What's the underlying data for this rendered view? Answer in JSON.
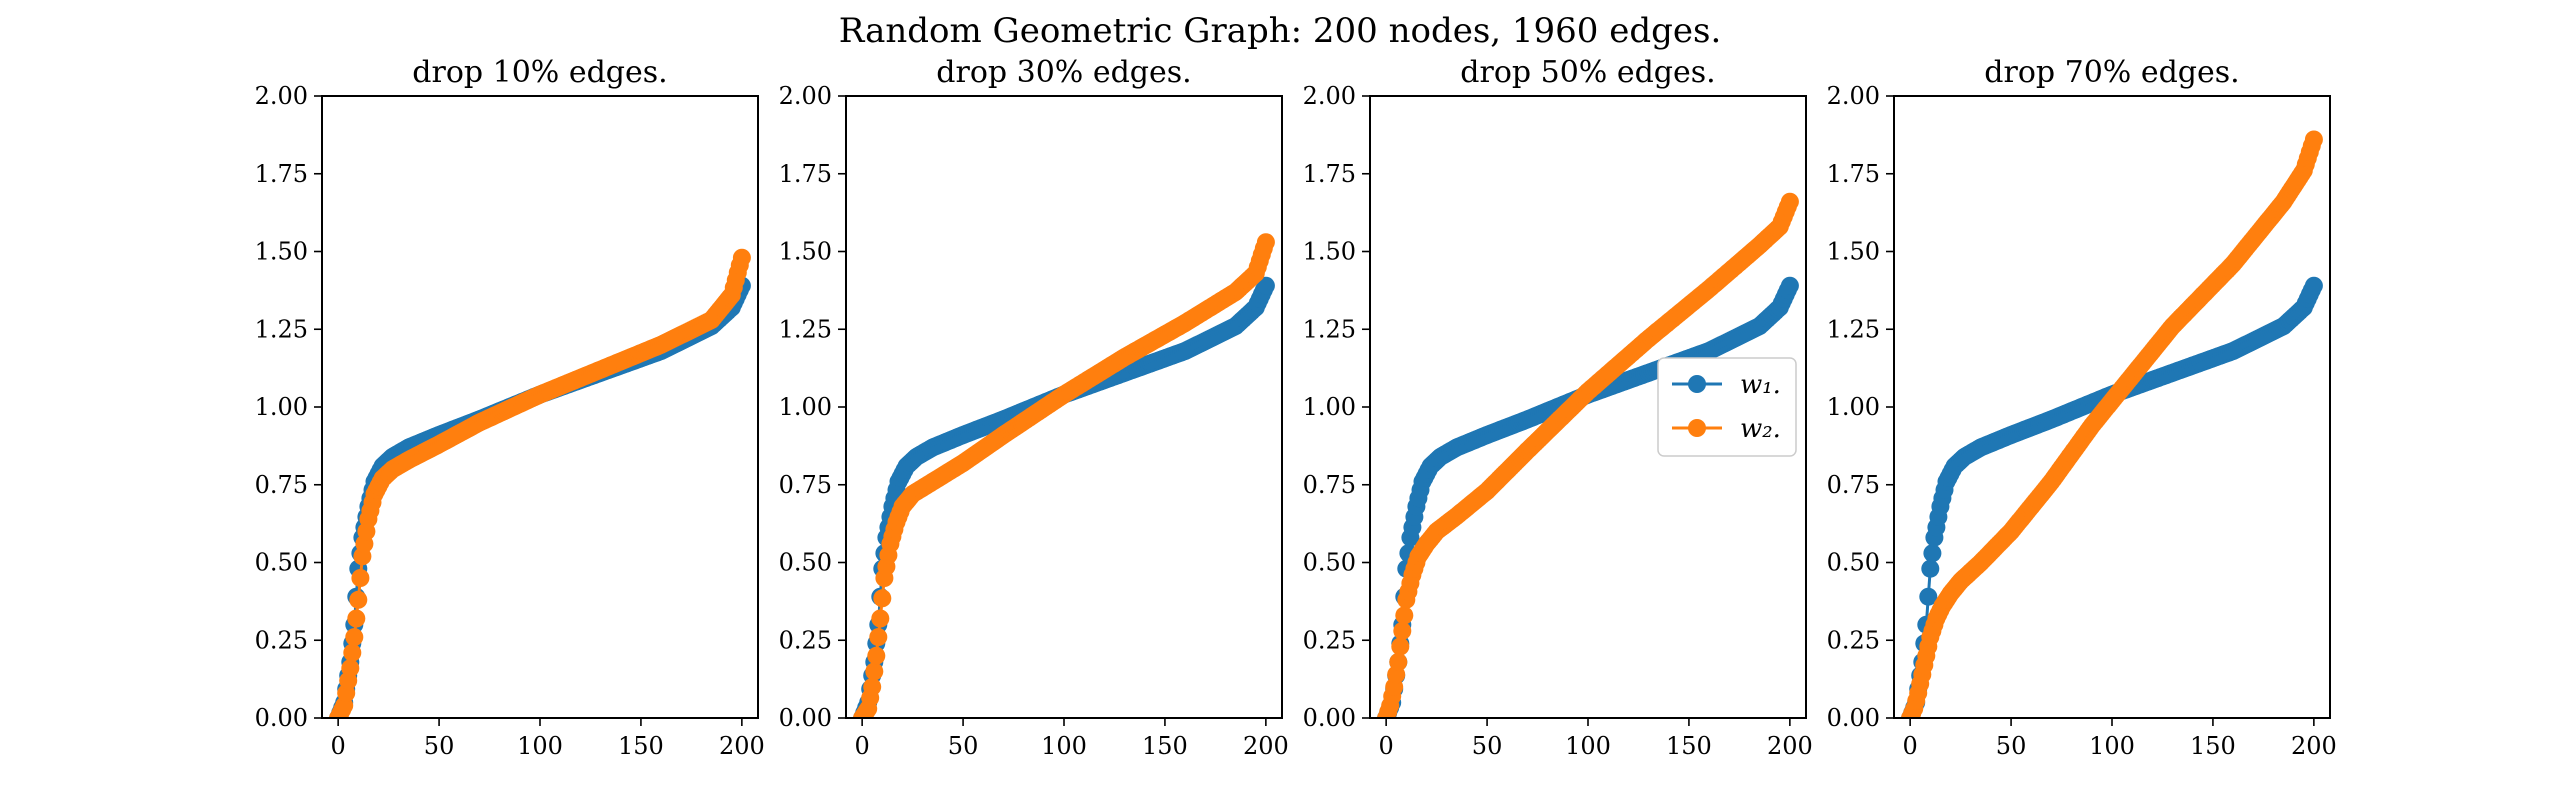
{
  "figure_title": "Random Geometric Graph: 200 nodes, 1960 edges.",
  "legend": {
    "entries": [
      {
        "label": "w₁.",
        "color": "#1f77b4"
      },
      {
        "label": "w₂.",
        "color": "#ff7f0e"
      }
    ],
    "placement": "center-right of third subplot"
  },
  "chart_data": [
    {
      "type": "line",
      "title": "drop 10% edges.",
      "xlim": [
        -8,
        208
      ],
      "ylim": [
        0,
        2
      ],
      "xticks": [
        0,
        50,
        100,
        150,
        200
      ],
      "yticks": [
        "0.00",
        "0.25",
        "0.50",
        "0.75",
        "1.00",
        "1.25",
        "1.50",
        "1.75",
        "2.00"
      ],
      "marker": "circle",
      "series": [
        {
          "name": "w₁.",
          "color": "#1f77b4",
          "x": [
            0,
            3,
            6,
            8,
            10,
            12,
            15,
            18,
            22,
            27,
            35,
            50,
            70,
            100,
            130,
            160,
            185,
            195,
            200
          ],
          "y": [
            0.0,
            0.05,
            0.18,
            0.3,
            0.48,
            0.58,
            0.68,
            0.76,
            0.81,
            0.84,
            0.87,
            0.91,
            0.96,
            1.04,
            1.11,
            1.18,
            1.26,
            1.32,
            1.39
          ]
        },
        {
          "name": "w₂.",
          "color": "#ff7f0e",
          "x": [
            0,
            3,
            6,
            8,
            10,
            12,
            15,
            18,
            22,
            27,
            35,
            50,
            70,
            100,
            130,
            160,
            185,
            195,
            200
          ],
          "y": [
            0.0,
            0.04,
            0.16,
            0.26,
            0.38,
            0.52,
            0.64,
            0.72,
            0.77,
            0.8,
            0.83,
            0.88,
            0.95,
            1.04,
            1.12,
            1.2,
            1.28,
            1.36,
            1.48
          ]
        }
      ]
    },
    {
      "type": "line",
      "title": "drop 30% edges.",
      "xlim": [
        -8,
        208
      ],
      "ylim": [
        0,
        2
      ],
      "xticks": [
        0,
        50,
        100,
        150,
        200
      ],
      "yticks": [
        "0.00",
        "0.25",
        "0.50",
        "0.75",
        "1.00",
        "1.25",
        "1.50",
        "1.75",
        "2.00"
      ],
      "marker": "circle",
      "series": [
        {
          "name": "w₁.",
          "color": "#1f77b4",
          "x": [
            0,
            3,
            6,
            8,
            10,
            12,
            15,
            18,
            22,
            27,
            35,
            50,
            70,
            100,
            130,
            160,
            185,
            195,
            200
          ],
          "y": [
            0.0,
            0.05,
            0.18,
            0.3,
            0.48,
            0.58,
            0.68,
            0.76,
            0.81,
            0.84,
            0.87,
            0.91,
            0.96,
            1.04,
            1.11,
            1.18,
            1.26,
            1.32,
            1.39
          ]
        },
        {
          "name": "w₂.",
          "color": "#ff7f0e",
          "x": [
            0,
            3,
            5,
            7,
            9,
            11,
            14,
            17,
            20,
            25,
            35,
            50,
            70,
            100,
            130,
            160,
            185,
            195,
            200
          ],
          "y": [
            0.0,
            0.03,
            0.1,
            0.2,
            0.32,
            0.45,
            0.56,
            0.63,
            0.68,
            0.72,
            0.76,
            0.82,
            0.91,
            1.04,
            1.16,
            1.27,
            1.37,
            1.43,
            1.53
          ]
        }
      ]
    },
    {
      "type": "line",
      "title": "drop 50% edges.",
      "xlim": [
        -8,
        208
      ],
      "ylim": [
        0,
        2
      ],
      "xticks": [
        0,
        50,
        100,
        150,
        200
      ],
      "yticks": [
        "0.00",
        "0.25",
        "0.50",
        "0.75",
        "1.00",
        "1.25",
        "1.50",
        "1.75",
        "2.00"
      ],
      "marker": "circle",
      "series": [
        {
          "name": "w₁.",
          "color": "#1f77b4",
          "x": [
            0,
            3,
            6,
            8,
            10,
            12,
            15,
            18,
            22,
            27,
            35,
            50,
            70,
            100,
            130,
            160,
            185,
            195,
            200
          ],
          "y": [
            0.0,
            0.05,
            0.18,
            0.3,
            0.48,
            0.58,
            0.68,
            0.76,
            0.81,
            0.84,
            0.87,
            0.91,
            0.96,
            1.04,
            1.11,
            1.18,
            1.26,
            1.32,
            1.39
          ]
        },
        {
          "name": "w₂.",
          "color": "#ff7f0e",
          "x": [
            0,
            2,
            4,
            6,
            8,
            10,
            13,
            16,
            20,
            25,
            35,
            50,
            70,
            100,
            130,
            160,
            185,
            195,
            200
          ],
          "y": [
            0.0,
            0.04,
            0.1,
            0.18,
            0.28,
            0.38,
            0.46,
            0.52,
            0.56,
            0.6,
            0.65,
            0.73,
            0.86,
            1.05,
            1.22,
            1.38,
            1.52,
            1.58,
            1.66
          ]
        }
      ]
    },
    {
      "type": "line",
      "title": "drop 70% edges.",
      "xlim": [
        -8,
        208
      ],
      "ylim": [
        0,
        2
      ],
      "xticks": [
        0,
        50,
        100,
        150,
        200
      ],
      "yticks": [
        "0.00",
        "0.25",
        "0.50",
        "0.75",
        "1.00",
        "1.25",
        "1.50",
        "1.75",
        "2.00"
      ],
      "marker": "circle",
      "series": [
        {
          "name": "w₁.",
          "color": "#1f77b4",
          "x": [
            0,
            3,
            6,
            8,
            10,
            12,
            15,
            18,
            22,
            27,
            35,
            50,
            70,
            100,
            130,
            160,
            185,
            195,
            200
          ],
          "y": [
            0.0,
            0.05,
            0.18,
            0.3,
            0.48,
            0.58,
            0.68,
            0.76,
            0.81,
            0.84,
            0.87,
            0.91,
            0.96,
            1.04,
            1.11,
            1.18,
            1.26,
            1.32,
            1.39
          ]
        },
        {
          "name": "w₂.",
          "color": "#ff7f0e",
          "x": [
            0,
            2,
            4,
            6,
            8,
            10,
            13,
            16,
            20,
            25,
            35,
            50,
            70,
            90,
            110,
            130,
            160,
            185,
            195,
            200
          ],
          "y": [
            0.0,
            0.03,
            0.08,
            0.14,
            0.2,
            0.26,
            0.32,
            0.36,
            0.4,
            0.44,
            0.5,
            0.6,
            0.76,
            0.94,
            1.1,
            1.26,
            1.46,
            1.66,
            1.76,
            1.86
          ]
        }
      ]
    }
  ]
}
